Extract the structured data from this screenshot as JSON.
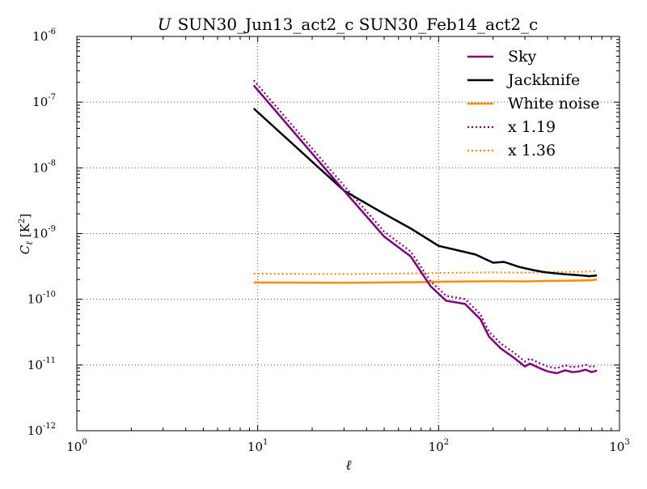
{
  "chart_data": {
    "type": "line",
    "title": "U SUN30_Jun13_act2_c SUN30_Feb14_act2_c",
    "title_italic_prefix": "U",
    "title_rest": "SUN30_Jun13_act2_c SUN30_Feb14_act2_c",
    "xlabel": "ℓ",
    "ylabel_main": "C",
    "ylabel_sub": "ℓ",
    "ylabel_unit": "[K",
    "ylabel_unit_exp": "2",
    "ylabel_unit_close": "]",
    "xscale": "log",
    "yscale": "log",
    "xlim": [
      1,
      1000
    ],
    "ylim": [
      1e-12,
      1e-06
    ],
    "x_ticks": [
      {
        "base": "10",
        "exp": "0",
        "value": 1
      },
      {
        "base": "10",
        "exp": "1",
        "value": 10
      },
      {
        "base": "10",
        "exp": "2",
        "value": 100
      },
      {
        "base": "10",
        "exp": "3",
        "value": 1000
      }
    ],
    "y_ticks": [
      {
        "base": "10",
        "exp": "-12",
        "value": 1e-12
      },
      {
        "base": "10",
        "exp": "-11",
        "value": 1e-11
      },
      {
        "base": "10",
        "exp": "-10",
        "value": 1e-10
      },
      {
        "base": "10",
        "exp": "-9",
        "value": 1e-09
      },
      {
        "base": "10",
        "exp": "-8",
        "value": 1e-08
      },
      {
        "base": "10",
        "exp": "-7",
        "value": 1e-07
      },
      {
        "base": "10",
        "exp": "-6",
        "value": 1e-06
      }
    ],
    "grid": true,
    "legend_position": "top-right",
    "series": [
      {
        "name": "Sky",
        "color": "#800080",
        "style": "solid",
        "x": [
          9.5,
          30,
          50,
          70,
          90,
          110,
          140,
          170,
          190,
          220,
          260,
          300,
          320,
          360,
          400,
          450,
          500,
          550,
          600,
          650,
          700,
          750
        ],
        "y": [
          1.8e-07,
          4.5e-09,
          9e-10,
          4.5e-10,
          1.6e-10,
          9.5e-11,
          8.5e-11,
          5e-11,
          2.7e-11,
          1.8e-11,
          1.3e-11,
          9.5e-12,
          1.05e-11,
          9e-12,
          8e-12,
          7.5e-12,
          8.3e-12,
          7.8e-12,
          8e-12,
          8.5e-12,
          7.8e-12,
          8.2e-12
        ]
      },
      {
        "name": "Jackknife",
        "color": "#000000",
        "style": "solid",
        "x": [
          9.5,
          30,
          50,
          70,
          100,
          130,
          160,
          200,
          230,
          280,
          330,
          380,
          430,
          500,
          560,
          620,
          680,
          750
        ],
        "y": [
          8e-08,
          4.5e-09,
          2e-09,
          1.2e-09,
          6.5e-10,
          5.5e-10,
          4.8e-10,
          3.6e-10,
          3.7e-10,
          3.1e-10,
          2.8e-10,
          2.6e-10,
          2.5e-10,
          2.4e-10,
          2.35e-10,
          2.3e-10,
          2.25e-10,
          2.3e-10
        ]
      },
      {
        "name": "White noise",
        "color": "#ff8c00",
        "style": "solid",
        "x": [
          9.5,
          30,
          70,
          100,
          200,
          300,
          400,
          500,
          600,
          700,
          750
        ],
        "y": [
          1.8e-10,
          1.78e-10,
          1.82e-10,
          1.85e-10,
          1.88e-10,
          1.87e-10,
          1.9e-10,
          1.92e-10,
          1.93e-10,
          1.95e-10,
          2e-10
        ]
      },
      {
        "name": "x 1.19",
        "color": "#800080",
        "style": "dotted",
        "x": [
          9.5,
          30,
          50,
          70,
          90,
          110,
          140,
          170,
          190,
          220,
          260,
          300,
          320,
          360,
          400,
          450,
          500,
          550,
          600,
          650,
          700,
          750
        ],
        "y": [
          2.15e-07,
          5.35e-09,
          1.07e-09,
          5.35e-10,
          1.9e-10,
          1.13e-10,
          1.01e-10,
          5.95e-11,
          3.2e-11,
          2.14e-11,
          1.55e-11,
          1.13e-11,
          1.25e-11,
          1.07e-11,
          9.5e-12,
          8.9e-12,
          9.9e-12,
          9.3e-12,
          9.5e-12,
          1.01e-11,
          9.3e-12,
          9.8e-12
        ]
      },
      {
        "name": "x 1.36",
        "color": "#ff8c00",
        "style": "dotted",
        "x": [
          9.5,
          30,
          70,
          100,
          200,
          300,
          400,
          500,
          600,
          700,
          750
        ],
        "y": [
          2.45e-10,
          2.42e-10,
          2.48e-10,
          2.52e-10,
          2.56e-10,
          2.54e-10,
          2.58e-10,
          2.61e-10,
          2.62e-10,
          2.65e-10,
          2.72e-10
        ]
      }
    ]
  }
}
